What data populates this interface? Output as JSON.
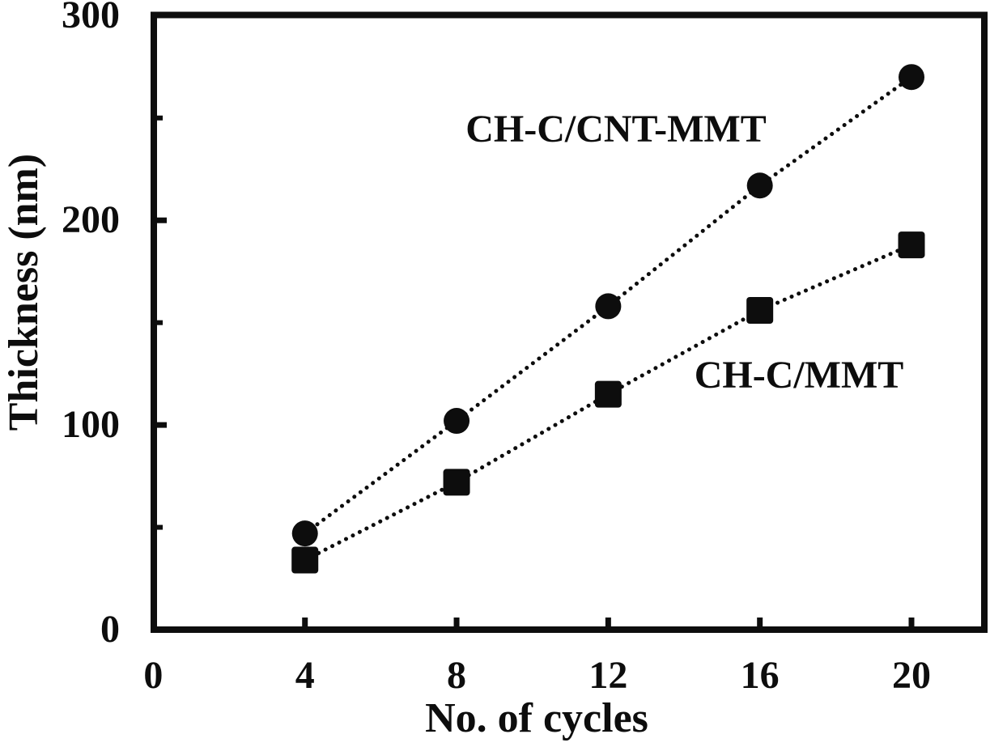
{
  "chart_data": {
    "type": "scatter",
    "title": "",
    "xlabel": "No. of cycles",
    "ylabel": "Thickness (nm)",
    "x": [
      4,
      8,
      12,
      16,
      20
    ],
    "series": [
      {
        "name": "CH-C/CNT-MMT",
        "marker": "circle",
        "values": [
          47,
          102,
          158,
          217,
          270
        ]
      },
      {
        "name": "CH-C/MMT",
        "marker": "square",
        "values": [
          34,
          72,
          115,
          156,
          188
        ]
      }
    ],
    "line_style": "dotted",
    "color": "#0d0d0d",
    "background": "#ffffff",
    "xlim": [
      0,
      21.9
    ],
    "ylim": [
      0,
      300
    ],
    "x_ticks": [
      0,
      4,
      8,
      12,
      16,
      20
    ],
    "y_ticks_major": [
      0,
      100,
      200,
      300
    ],
    "y_ticks_minor": [
      50,
      150,
      250
    ],
    "grid": false,
    "legend_position": "inline-annotations"
  }
}
